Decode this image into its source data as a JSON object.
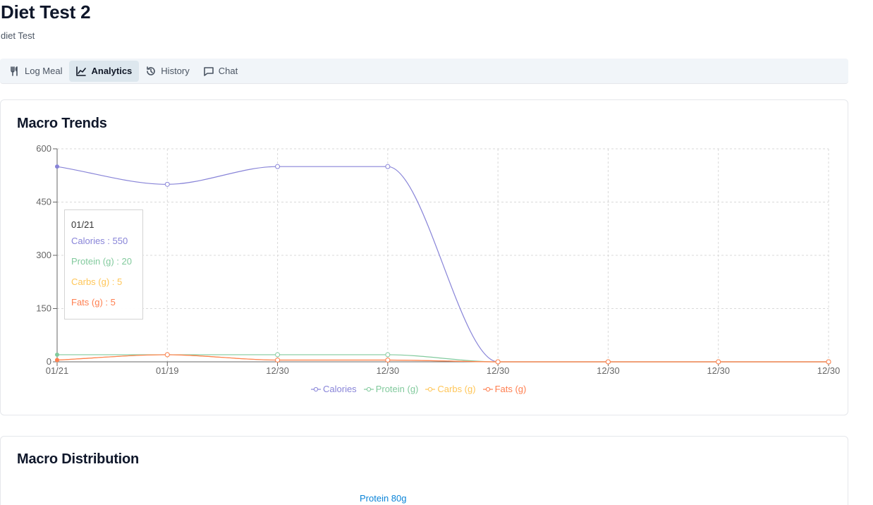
{
  "header": {
    "title": "Diet Test 2",
    "subtitle": "diet Test"
  },
  "tabs": [
    {
      "label": "Log Meal",
      "icon": "utensils-icon",
      "active": false
    },
    {
      "label": "Analytics",
      "icon": "chart-line-icon",
      "active": true
    },
    {
      "label": "History",
      "icon": "history-icon",
      "active": false
    },
    {
      "label": "Chat",
      "icon": "message-square-icon",
      "active": false
    }
  ],
  "trends": {
    "title": "Macro Trends",
    "tooltip": {
      "label": "01/21",
      "lines": [
        {
          "text": "Calories : 550",
          "color": "#8884d8"
        },
        {
          "text": "Protein (g) : 20",
          "color": "#82ca9d"
        },
        {
          "text": "Carbs (g) : 5",
          "color": "#ffc658"
        },
        {
          "text": "Fats (g) : 5",
          "color": "#ff7f50"
        }
      ]
    }
  },
  "chart_data": {
    "type": "line",
    "categories": [
      "01/21",
      "01/19",
      "12/30",
      "12/30",
      "12/30",
      "12/30",
      "12/30",
      "12/30"
    ],
    "ylim": [
      0,
      600
    ],
    "yticks": [
      0,
      150,
      300,
      450,
      600
    ],
    "grid": true,
    "legend_position": "bottom",
    "series": [
      {
        "name": "Calories",
        "color": "#8884d8",
        "values": [
          550,
          500,
          550,
          550,
          0,
          0,
          0,
          0
        ]
      },
      {
        "name": "Protein (g)",
        "color": "#82ca9d",
        "values": [
          20,
          20,
          20,
          20,
          0,
          0,
          0,
          0
        ]
      },
      {
        "name": "Carbs (g)",
        "color": "#ffc658",
        "values": [
          5,
          20,
          5,
          5,
          0,
          0,
          0,
          0
        ]
      },
      {
        "name": "Fats (g)",
        "color": "#ff7f50",
        "values": [
          5,
          20,
          5,
          5,
          0,
          0,
          0,
          0
        ]
      }
    ]
  },
  "distribution": {
    "title": "Macro Distribution",
    "label": "Protein 80g",
    "label_color": "#0b84d8"
  }
}
